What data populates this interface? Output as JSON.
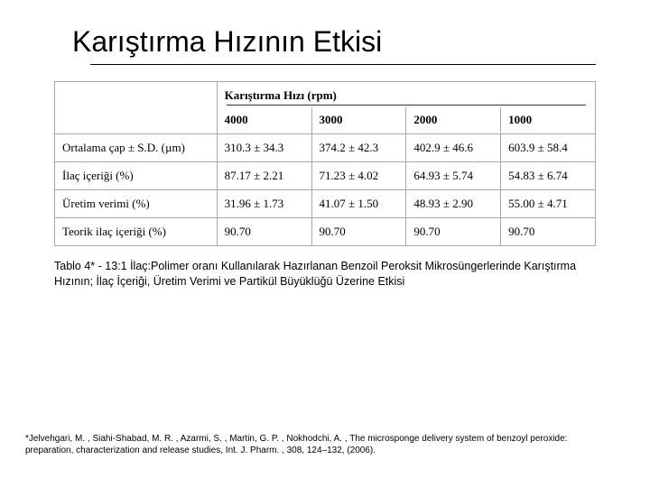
{
  "title": "Karıştırma Hızının Etkisi",
  "table": {
    "header_label": "Karıştırma Hızı (rpm)",
    "speeds": [
      "4000",
      "3000",
      "2000",
      "1000"
    ],
    "rows": [
      {
        "label": "Ortalama çap ± S.D. (µm)",
        "cells": [
          "310.3 ± 34.3",
          "374.2 ± 42.3",
          "402.9 ± 46.6",
          "603.9 ± 58.4"
        ]
      },
      {
        "label": "İlaç içeriği (%)",
        "cells": [
          "87.17 ± 2.21",
          "71.23 ± 4.02",
          "64.93 ± 5.74",
          "54.83 ± 6.74"
        ]
      },
      {
        "label": "Üretim verimi (%)",
        "cells": [
          "31.96 ± 1.73",
          "41.07 ± 1.50",
          "48.93 ± 2.90",
          "55.00 ± 4.71"
        ]
      },
      {
        "label": "Teorik ilaç içeriği (%)",
        "cells": [
          "90.70",
          "90.70",
          "90.70",
          "90.70"
        ]
      }
    ]
  },
  "caption": "Tablo 4* - 13:1 İlaç:Polimer oranı Kullanılarak Hazırlanan Benzoil Peroksit Mikrosüngerlerinde Karıştırma Hızının; İlaç İçeriği, Üretim Verimi ve Partikül Büyüklüğü Üzerine Etkisi",
  "footnote": "*Jelvehgari, M. , Siahi-Shabad, M. R. , Azarmi, S. , Martin, G. P. , Nokhodchi, A. , The microsponge delivery system of benzoyl peroxide: preparation, characterization and release studies, Int. J. Pharm. , 308, 124–132, (2006)."
}
